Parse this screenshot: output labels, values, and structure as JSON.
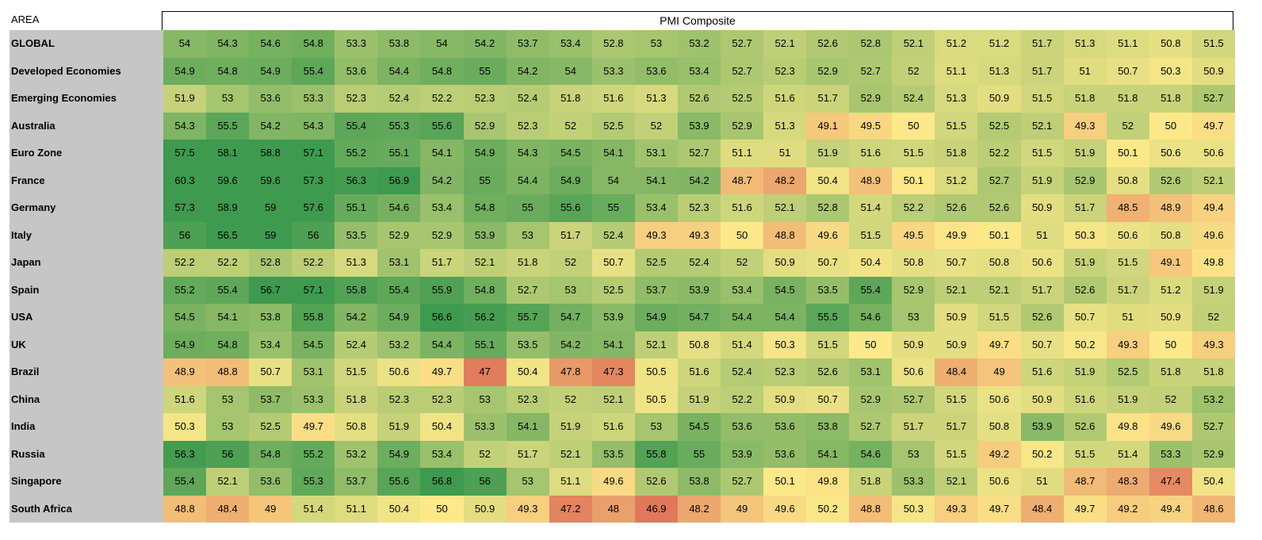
{
  "header": {
    "area_label": "AREA",
    "title": "PMI Composite"
  },
  "rows": [
    {
      "label": "GLOBAL",
      "values": [
        54,
        54.3,
        54.6,
        54.8,
        53.3,
        53.8,
        54,
        54.2,
        53.7,
        53.4,
        52.8,
        53,
        53.2,
        52.7,
        52.1,
        52.6,
        52.8,
        52.1,
        51.2,
        51.2,
        51.7,
        51.3,
        51.1,
        50.8,
        51.5
      ]
    },
    {
      "label": "Developed Economies",
      "values": [
        54.9,
        54.8,
        54.9,
        55.4,
        53.6,
        54.4,
        54.8,
        55,
        54.2,
        54,
        53.3,
        53.6,
        53.4,
        52.7,
        52.3,
        52.9,
        52.7,
        52,
        51.1,
        51.3,
        51.7,
        51,
        50.7,
        50.3,
        50.9
      ]
    },
    {
      "label": "Emerging Economies",
      "values": [
        51.9,
        53,
        53.6,
        53.3,
        52.3,
        52.4,
        52.2,
        52.3,
        52.4,
        51.8,
        51.6,
        51.3,
        52.6,
        52.5,
        51.6,
        51.7,
        52.9,
        52.4,
        51.3,
        50.9,
        51.5,
        51.8,
        51.8,
        51.8,
        52.7
      ]
    },
    {
      "label": "Australia",
      "values": [
        54.3,
        55.5,
        54.2,
        54.3,
        55.4,
        55.3,
        55.6,
        52.9,
        52.3,
        52,
        52.5,
        52,
        53.9,
        52.9,
        51.3,
        49.1,
        49.5,
        50,
        51.5,
        52.5,
        52.1,
        49.3,
        52,
        50,
        49.7
      ]
    },
    {
      "label": "Euro Zone",
      "values": [
        57.5,
        58.1,
        58.8,
        57.1,
        55.2,
        55.1,
        54.1,
        54.9,
        54.3,
        54.5,
        54.1,
        53.1,
        52.7,
        51.1,
        51,
        51.9,
        51.6,
        51.5,
        51.8,
        52.2,
        51.5,
        51.9,
        50.1,
        50.6,
        50.6
      ]
    },
    {
      "label": "France",
      "values": [
        60.3,
        59.6,
        59.6,
        57.3,
        56.3,
        56.9,
        54.2,
        55,
        54.4,
        54.9,
        54,
        54.1,
        54.2,
        48.7,
        48.2,
        50.4,
        48.9,
        50.1,
        51.2,
        52.7,
        51.9,
        52.9,
        50.8,
        52.6,
        52.1
      ]
    },
    {
      "label": "Germany",
      "values": [
        57.3,
        58.9,
        59,
        57.6,
        55.1,
        54.6,
        53.4,
        54.8,
        55,
        55.6,
        55,
        53.4,
        52.3,
        51.6,
        52.1,
        52.8,
        51.4,
        52.2,
        52.6,
        52.6,
        50.9,
        51.7,
        48.5,
        48.9,
        49.4
      ]
    },
    {
      "label": "Italy",
      "values": [
        56,
        56.5,
        59,
        56,
        53.5,
        52.9,
        52.9,
        53.9,
        53,
        51.7,
        52.4,
        49.3,
        49.3,
        50,
        48.8,
        49.6,
        51.5,
        49.5,
        49.9,
        50.1,
        51,
        50.3,
        50.6,
        50.8,
        49.6
      ]
    },
    {
      "label": "Japan",
      "values": [
        52.2,
        52.2,
        52.8,
        52.2,
        51.3,
        53.1,
        51.7,
        52.1,
        51.8,
        52,
        50.7,
        52.5,
        52.4,
        52,
        50.9,
        50.7,
        50.4,
        50.8,
        50.7,
        50.8,
        50.6,
        51.9,
        51.5,
        49.1,
        49.8
      ]
    },
    {
      "label": "Spain",
      "values": [
        55.2,
        55.4,
        56.7,
        57.1,
        55.8,
        55.4,
        55.9,
        54.8,
        52.7,
        53,
        52.5,
        53.7,
        53.9,
        53.4,
        54.5,
        53.5,
        55.4,
        52.9,
        52.1,
        52.1,
        51.7,
        52.6,
        51.7,
        51.2,
        51.9
      ]
    },
    {
      "label": "USA",
      "values": [
        54.5,
        54.1,
        53.8,
        55.8,
        54.2,
        54.9,
        56.6,
        56.2,
        55.7,
        54.7,
        53.9,
        54.9,
        54.7,
        54.4,
        54.4,
        55.5,
        54.6,
        53,
        50.9,
        51.5,
        52.6,
        50.7,
        51,
        50.9,
        52
      ]
    },
    {
      "label": "UK",
      "values": [
        54.9,
        54.8,
        53.4,
        54.5,
        52.4,
        53.2,
        54.4,
        55.1,
        53.5,
        54.2,
        54.1,
        52.1,
        50.8,
        51.4,
        50.3,
        51.5,
        50,
        50.9,
        50.9,
        49.7,
        50.7,
        50.2,
        49.3,
        50,
        49.3
      ]
    },
    {
      "label": "Brazil",
      "values": [
        48.9,
        48.8,
        50.7,
        53.1,
        51.5,
        50.6,
        49.7,
        47,
        50.4,
        47.8,
        47.3,
        50.5,
        51.6,
        52.4,
        52.3,
        52.6,
        53.1,
        50.6,
        48.4,
        49,
        51.6,
        51.9,
        52.5,
        51.8,
        51.8
      ]
    },
    {
      "label": "China",
      "values": [
        51.6,
        53,
        53.7,
        53.3,
        51.8,
        52.3,
        52.3,
        53,
        52.3,
        52,
        52.1,
        50.5,
        51.9,
        52.2,
        50.9,
        50.7,
        52.9,
        52.7,
        51.5,
        50.6,
        50.9,
        51.6,
        51.9,
        52,
        53.2
      ]
    },
    {
      "label": "India",
      "values": [
        50.3,
        53,
        52.5,
        49.7,
        50.8,
        51.9,
        50.4,
        53.3,
        54.1,
        51.9,
        51.6,
        53,
        54.5,
        53.6,
        53.6,
        53.8,
        52.7,
        51.7,
        51.7,
        50.8,
        53.9,
        52.6,
        49.8,
        49.6,
        52.7
      ]
    },
    {
      "label": "Russia",
      "values": [
        56.3,
        56,
        54.8,
        55.2,
        53.2,
        54.9,
        53.4,
        52,
        51.7,
        52.1,
        53.5,
        55.8,
        55,
        53.9,
        53.6,
        54.1,
        54.6,
        53,
        51.5,
        49.2,
        50.2,
        51.5,
        51.4,
        53.3,
        52.9
      ]
    },
    {
      "label": "Singapore",
      "values": [
        55.4,
        52.1,
        53.6,
        55.3,
        53.7,
        55.6,
        56.8,
        56,
        53,
        51.1,
        49.6,
        52.6,
        53.8,
        52.7,
        50.1,
        49.8,
        51.8,
        53.3,
        52.1,
        50.6,
        51,
        48.7,
        48.3,
        47.4,
        50.4
      ]
    },
    {
      "label": "South Africa",
      "values": [
        48.8,
        48.4,
        49,
        51.4,
        51.1,
        50.4,
        50,
        50.9,
        49.3,
        47.2,
        48,
        46.9,
        48.2,
        49,
        49.6,
        50.2,
        48.8,
        50.3,
        49.3,
        49.7,
        48.4,
        49.7,
        49.2,
        49.4,
        48.6
      ]
    }
  ],
  "colors": {
    "low": "#e0785a",
    "mid": "#fde98a",
    "high": "#3e9a4f",
    "label_bg": "#c6c6c6"
  }
}
